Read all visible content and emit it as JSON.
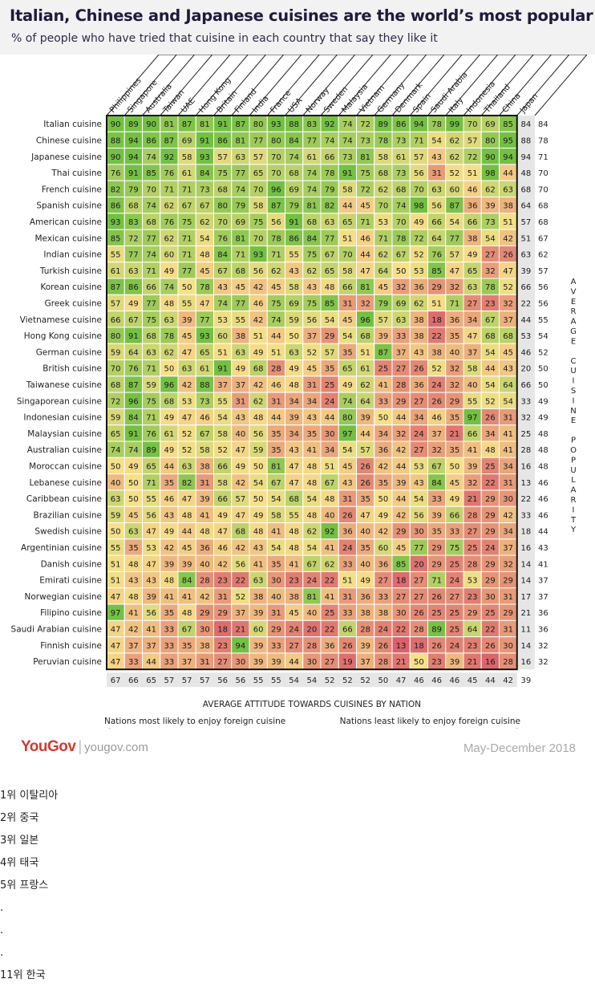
{
  "chart_data": {
    "type": "heatmap",
    "title": "Italian, Chinese and Japanese cuisines are the world’s most popular",
    "subtitle": "% of people who have tried that cuisine in each country that say they like it",
    "countries": [
      "Philippines",
      "Singapore",
      "Australia",
      "Taiwan",
      "UAE",
      "Hong Kong",
      "Britain",
      "Finland",
      "India",
      "France",
      "USA",
      "Norway",
      "Sweden",
      "Malaysia",
      "Vietnam",
      "Germany",
      "Denmark",
      "Spain",
      "Saudi Arabia",
      "Italy",
      "Indonesia",
      "Thailand",
      "China",
      "Japan"
    ],
    "cuisines": [
      "Italian cuisine",
      "Chinese cuisine",
      "Japanese cuisine",
      "Thai cuisine",
      "French cuisine",
      "Spanish cuisine",
      "American cuisine",
      "Mexican cuisine",
      "Indian cuisine",
      "Turkish cuisine",
      "Korean cuisine",
      "Greek cuisine",
      "Vietnamese cuisine",
      "Hong Kong cuisine",
      "German cuisine",
      "British cuisine",
      "Taiwanese cuisine",
      "Singaporean cuisine",
      "Indonesian cuisine",
      "Malaysian cuisine",
      "Australian cuisine",
      "Moroccan cuisine",
      "Lebanese cuisine",
      "Caribbean cuisine",
      "Brazilian cuisine",
      "Swedish cuisine",
      "Argentinian cuisine",
      "Danish cuisine",
      "Emirati cuisine",
      "Norwegian cuisine",
      "Filipino cuisine",
      "Saudi Arabian cuisine",
      "Finnish cuisine",
      "Peruvian cuisine"
    ],
    "values": [
      [
        90,
        89,
        90,
        81,
        87,
        81,
        91,
        87,
        80,
        93,
        88,
        83,
        92,
        74,
        72,
        89,
        86,
        94,
        78,
        99,
        70,
        69,
        85,
        84
      ],
      [
        88,
        94,
        86,
        87,
        69,
        91,
        86,
        81,
        77,
        80,
        84,
        77,
        74,
        74,
        73,
        78,
        73,
        71,
        54,
        62,
        57,
        80,
        95,
        88
      ],
      [
        90,
        94,
        74,
        92,
        58,
        93,
        57,
        63,
        57,
        70,
        74,
        61,
        66,
        73,
        81,
        58,
        61,
        57,
        43,
        62,
        72,
        90,
        94,
        94
      ],
      [
        76,
        91,
        85,
        76,
        61,
        84,
        75,
        77,
        65,
        70,
        68,
        74,
        78,
        91,
        75,
        68,
        73,
        56,
        31,
        52,
        51,
        98,
        44,
        48
      ],
      [
        82,
        79,
        70,
        71,
        71,
        73,
        68,
        74,
        70,
        96,
        69,
        74,
        79,
        58,
        72,
        62,
        68,
        70,
        63,
        60,
        46,
        62,
        63,
        68
      ],
      [
        86,
        68,
        74,
        62,
        67,
        67,
        80,
        79,
        58,
        87,
        79,
        81,
        82,
        44,
        45,
        70,
        74,
        98,
        56,
        87,
        36,
        39,
        38,
        64
      ],
      [
        93,
        83,
        68,
        76,
        75,
        62,
        70,
        69,
        75,
        56,
        91,
        68,
        63,
        65,
        71,
        53,
        70,
        49,
        66,
        54,
        66,
        73,
        51,
        57
      ],
      [
        85,
        72,
        77,
        62,
        71,
        54,
        76,
        81,
        70,
        78,
        86,
        84,
        77,
        51,
        46,
        71,
        78,
        72,
        64,
        77,
        38,
        54,
        42,
        51
      ],
      [
        55,
        77,
        74,
        60,
        71,
        48,
        84,
        71,
        93,
        71,
        55,
        75,
        67,
        70,
        44,
        62,
        67,
        52,
        76,
        57,
        49,
        27,
        26,
        63
      ],
      [
        61,
        63,
        71,
        49,
        77,
        45,
        67,
        68,
        56,
        62,
        43,
        62,
        65,
        58,
        47,
        64,
        50,
        53,
        85,
        47,
        65,
        32,
        47,
        39
      ],
      [
        87,
        86,
        66,
        74,
        50,
        78,
        43,
        45,
        42,
        45,
        58,
        43,
        48,
        66,
        81,
        45,
        32,
        36,
        29,
        32,
        63,
        78,
        52,
        66
      ],
      [
        57,
        49,
        77,
        48,
        55,
        47,
        74,
        77,
        46,
        75,
        69,
        75,
        85,
        31,
        32,
        79,
        69,
        62,
        51,
        71,
        27,
        23,
        32,
        22
      ],
      [
        66,
        67,
        75,
        63,
        39,
        77,
        53,
        55,
        42,
        74,
        59,
        56,
        54,
        45,
        96,
        57,
        63,
        38,
        18,
        36,
        34,
        67,
        37,
        44
      ],
      [
        80,
        91,
        68,
        78,
        45,
        93,
        60,
        38,
        51,
        44,
        50,
        37,
        29,
        54,
        68,
        39,
        33,
        38,
        22,
        35,
        47,
        68,
        68,
        53
      ],
      [
        59,
        64,
        63,
        62,
        47,
        65,
        51,
        63,
        49,
        51,
        63,
        52,
        57,
        35,
        51,
        87,
        37,
        43,
        38,
        40,
        37,
        54,
        45,
        46
      ],
      [
        70,
        76,
        71,
        50,
        63,
        61,
        91,
        49,
        68,
        28,
        49,
        45,
        35,
        65,
        61,
        25,
        27,
        26,
        52,
        32,
        58,
        44,
        43,
        20
      ],
      [
        68,
        87,
        59,
        96,
        42,
        88,
        37,
        37,
        42,
        46,
        48,
        31,
        25,
        49,
        62,
        41,
        28,
        36,
        24,
        32,
        40,
        54,
        64,
        66
      ],
      [
        72,
        96,
        75,
        68,
        53,
        73,
        55,
        31,
        62,
        31,
        34,
        34,
        24,
        74,
        64,
        33,
        29,
        27,
        26,
        29,
        55,
        52,
        54,
        33
      ],
      [
        59,
        84,
        71,
        49,
        47,
        46,
        54,
        43,
        48,
        44,
        39,
        43,
        44,
        80,
        39,
        50,
        44,
        34,
        46,
        35,
        97,
        26,
        31,
        32
      ],
      [
        65,
        91,
        76,
        61,
        52,
        67,
        58,
        40,
        56,
        35,
        34,
        35,
        30,
        97,
        44,
        34,
        32,
        24,
        37,
        21,
        66,
        34,
        41,
        25
      ],
      [
        74,
        74,
        89,
        49,
        52,
        58,
        52,
        47,
        59,
        35,
        43,
        41,
        34,
        54,
        57,
        36,
        42,
        27,
        32,
        35,
        41,
        48,
        41,
        28
      ],
      [
        50,
        49,
        65,
        44,
        63,
        38,
        66,
        49,
        50,
        81,
        47,
        48,
        51,
        45,
        26,
        42,
        44,
        53,
        67,
        50,
        39,
        25,
        34,
        16
      ],
      [
        40,
        50,
        71,
        35,
        82,
        31,
        58,
        42,
        54,
        67,
        47,
        48,
        67,
        43,
        26,
        35,
        39,
        43,
        84,
        45,
        32,
        22,
        31,
        13
      ],
      [
        63,
        50,
        55,
        46,
        47,
        39,
        66,
        57,
        50,
        54,
        68,
        54,
        48,
        31,
        35,
        50,
        44,
        54,
        33,
        49,
        21,
        29,
        30,
        22
      ],
      [
        59,
        45,
        56,
        43,
        48,
        41,
        49,
        47,
        49,
        58,
        55,
        48,
        40,
        26,
        47,
        49,
        42,
        56,
        39,
        66,
        28,
        29,
        42,
        33
      ],
      [
        50,
        63,
        47,
        49,
        44,
        48,
        47,
        68,
        48,
        41,
        48,
        62,
        92,
        36,
        40,
        42,
        29,
        30,
        35,
        33,
        27,
        29,
        34,
        18
      ],
      [
        55,
        35,
        53,
        42,
        45,
        36,
        46,
        42,
        43,
        54,
        48,
        54,
        41,
        24,
        35,
        60,
        45,
        77,
        29,
        75,
        25,
        24,
        37,
        16
      ],
      [
        51,
        48,
        47,
        39,
        39,
        40,
        42,
        56,
        41,
        35,
        41,
        67,
        62,
        33,
        40,
        36,
        85,
        20,
        29,
        25,
        28,
        29,
        32,
        14
      ],
      [
        51,
        43,
        43,
        48,
        84,
        28,
        23,
        22,
        63,
        30,
        23,
        24,
        22,
        51,
        49,
        27,
        18,
        27,
        71,
        24,
        53,
        29,
        29,
        14
      ],
      [
        47,
        48,
        39,
        41,
        41,
        42,
        31,
        52,
        38,
        40,
        38,
        81,
        41,
        31,
        36,
        33,
        27,
        27,
        26,
        27,
        23,
        30,
        31,
        17
      ],
      [
        97,
        41,
        56,
        35,
        48,
        29,
        29,
        37,
        39,
        31,
        45,
        40,
        25,
        33,
        38,
        38,
        30,
        26,
        25,
        25,
        29,
        25,
        29,
        21
      ],
      [
        47,
        42,
        41,
        33,
        67,
        30,
        18,
        21,
        60,
        29,
        24,
        20,
        22,
        66,
        28,
        24,
        22,
        28,
        89,
        25,
        64,
        22,
        31,
        11
      ],
      [
        47,
        37,
        37,
        33,
        35,
        38,
        23,
        94,
        39,
        33,
        27,
        28,
        36,
        26,
        39,
        26,
        13,
        18,
        26,
        24,
        23,
        26,
        30,
        14
      ],
      [
        47,
        33,
        44,
        33,
        37,
        31,
        27,
        30,
        39,
        39,
        44,
        30,
        27,
        19,
        37,
        28,
        21,
        50,
        23,
        39,
        21,
        16,
        28,
        16
      ]
    ],
    "row_averages": [
      84,
      78,
      71,
      70,
      70,
      68,
      68,
      67,
      62,
      57,
      56,
      56,
      55,
      54,
      52,
      50,
      50,
      49,
      49,
      48,
      48,
      48,
      46,
      46,
      46,
      44,
      43,
      41,
      37,
      37,
      36,
      36,
      32,
      32
    ],
    "column_averages": [
      67,
      66,
      65,
      57,
      57,
      57,
      56,
      56,
      55,
      55,
      54,
      54,
      52,
      52,
      52,
      50,
      47,
      46,
      46,
      46,
      45,
      44,
      42,
      39
    ],
    "right_axis_label": "AVERAGE CUISINE POPULARITY",
    "bottom_axis_label": "AVERAGE ATTITUDE TOWARDS CUISINES BY NATION",
    "left_note": "Nations most likely to enjoy foreign cuisine",
    "right_note": "Nations least likely to enjoy foreign cuisine",
    "colors": {
      "low": "#d9616b",
      "mid": "#f7e08a",
      "high": "#74c044"
    }
  },
  "footer": {
    "brand": "YouGov",
    "site": "yougov.com",
    "date": "May-December 2018"
  },
  "notes": [
    "1위 이탈리아",
    "2위 중국",
    "3위 일본",
    "4위 태국",
    "5위 프랑스",
    ".",
    ".",
    ".",
    "11위 한국"
  ]
}
